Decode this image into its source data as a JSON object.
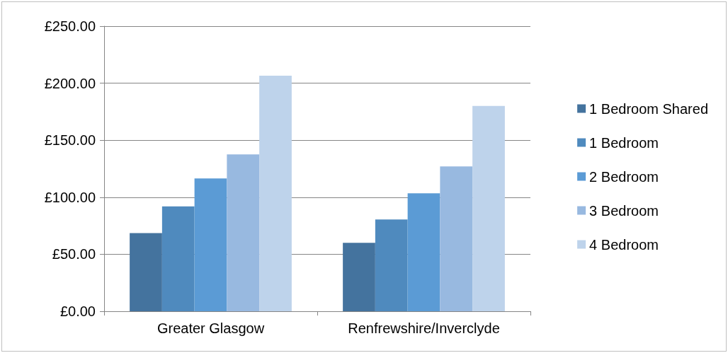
{
  "chart_data": {
    "type": "bar",
    "categories": [
      "Greater Glasgow",
      "Renfrewshire/Inverclyde"
    ],
    "series": [
      {
        "name": "1 Bedroom Shared",
        "color": "#44739e",
        "values": [
          68.5,
          60
        ]
      },
      {
        "name": "1 Bedroom",
        "color": "#4f8abe",
        "values": [
          92,
          80.5
        ]
      },
      {
        "name": "2 Bedroom",
        "color": "#5b9bd5",
        "values": [
          116.5,
          103.5
        ]
      },
      {
        "name": "3 Bedroom",
        "color": "#98b9e0",
        "values": [
          137.5,
          127
        ]
      },
      {
        "name": "4 Bedroom",
        "color": "#bed3eb",
        "values": [
          206.5,
          180
        ]
      }
    ],
    "ylim": [
      0,
      250
    ],
    "yticks": [
      {
        "value": 0,
        "label": "£0.00"
      },
      {
        "value": 50,
        "label": "£50.00"
      },
      {
        "value": 100,
        "label": "£100.00"
      },
      {
        "value": 150,
        "label": "£150.00"
      },
      {
        "value": 200,
        "label": "£200.00"
      },
      {
        "value": 250,
        "label": "£250.00"
      }
    ],
    "grid": "y",
    "legend": "right"
  }
}
